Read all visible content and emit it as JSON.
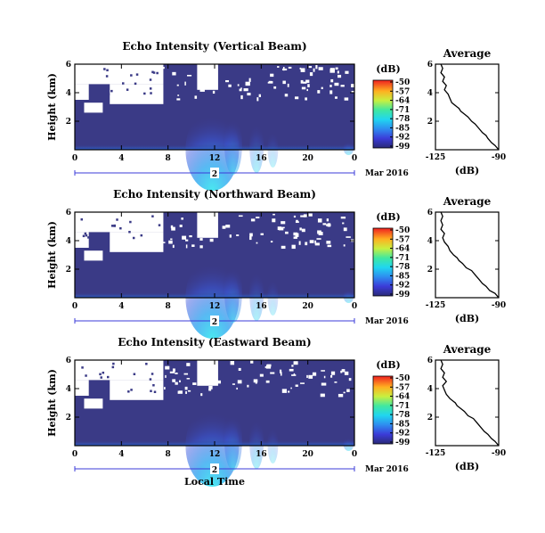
{
  "chart_data": [
    {
      "type": "heatmap",
      "title": "Echo Intensity (Vertical Beam)",
      "ylabel": "Height (km)",
      "ylim": [
        0,
        6
      ],
      "yticks": [
        "6",
        "4",
        "2"
      ],
      "xlim": [
        0,
        24
      ],
      "xticks": [
        "0",
        "4",
        "8",
        "12",
        "16",
        "20",
        "0"
      ],
      "date_day": "2",
      "date_label": "Mar 2016",
      "colorbar": {
        "unit": "(dB)",
        "ticks": [
          "-50",
          "-57",
          "-64",
          "-71",
          "-78",
          "-85",
          "-92",
          "-99"
        ]
      },
      "average": {
        "title": "Average",
        "xlabel": "(dB)",
        "xlim": [
          -125,
          -90
        ],
        "xticks": [
          "-125",
          "-90"
        ],
        "yticks": [
          "6",
          "4",
          "2"
        ],
        "profile": [
          [
            -90,
            0.0
          ],
          [
            -92,
            0.3
          ],
          [
            -94,
            0.5
          ],
          [
            -96,
            0.8
          ],
          [
            -97,
            1.0
          ],
          [
            -99,
            1.2
          ],
          [
            -101,
            1.5
          ],
          [
            -103,
            1.8
          ],
          [
            -105,
            2.0
          ],
          [
            -107,
            2.3
          ],
          [
            -109,
            2.5
          ],
          [
            -111,
            2.7
          ],
          [
            -112,
            2.9
          ],
          [
            -113,
            3.0
          ],
          [
            -116,
            3.3
          ],
          [
            -117,
            3.6
          ],
          [
            -118,
            3.9
          ],
          [
            -120,
            4.2
          ],
          [
            -119,
            4.5
          ],
          [
            -121,
            4.8
          ],
          [
            -120,
            5.1
          ],
          [
            -122,
            5.4
          ],
          [
            -121,
            5.7
          ],
          [
            -122,
            6.0
          ]
        ]
      }
    },
    {
      "type": "heatmap",
      "title": "Echo Intensity (Northward Beam)",
      "ylabel": "Height (km)",
      "ylim": [
        0,
        6
      ],
      "yticks": [
        "6",
        "4",
        "2"
      ],
      "xlim": [
        0,
        24
      ],
      "xticks": [
        "0",
        "4",
        "8",
        "12",
        "16",
        "20",
        "0"
      ],
      "date_day": "2",
      "date_label": "Mar 2016",
      "colorbar": {
        "unit": "(dB)",
        "ticks": [
          "-50",
          "-57",
          "-64",
          "-71",
          "-78",
          "-85",
          "-92",
          "-99"
        ]
      },
      "average": {
        "title": "Average",
        "xlabel": "(dB)",
        "xlim": [
          -125,
          -90
        ],
        "xticks": [
          "-125",
          "-90"
        ],
        "yticks": [
          "6",
          "4",
          "2"
        ],
        "profile": [
          [
            -90,
            0.0
          ],
          [
            -92,
            0.3
          ],
          [
            -95,
            0.5
          ],
          [
            -97,
            0.8
          ],
          [
            -99,
            1.0
          ],
          [
            -101,
            1.3
          ],
          [
            -103,
            1.6
          ],
          [
            -105,
            1.9
          ],
          [
            -108,
            2.1
          ],
          [
            -110,
            2.4
          ],
          [
            -112,
            2.6
          ],
          [
            -113,
            2.8
          ],
          [
            -115,
            3.0
          ],
          [
            -117,
            3.3
          ],
          [
            -118,
            3.6
          ],
          [
            -120,
            3.9
          ],
          [
            -121,
            4.2
          ],
          [
            -120,
            4.5
          ],
          [
            -122,
            4.8
          ],
          [
            -121,
            5.1
          ],
          [
            -122,
            5.4
          ],
          [
            -121,
            5.7
          ],
          [
            -122,
            6.0
          ]
        ]
      }
    },
    {
      "type": "heatmap",
      "title": "Echo Intensity (Eastward Beam)",
      "ylabel": "Height (km)",
      "ylim": [
        0,
        6
      ],
      "yticks": [
        "6",
        "4",
        "2"
      ],
      "xlim": [
        0,
        24
      ],
      "xticks": [
        "0",
        "4",
        "8",
        "12",
        "16",
        "20",
        "0"
      ],
      "date_day": "2",
      "date_label": "Mar 2016",
      "xlabel": "Local Time",
      "colorbar": {
        "unit": "(dB)",
        "ticks": [
          "-50",
          "-57",
          "-64",
          "-71",
          "-78",
          "-85",
          "-92",
          "-99"
        ]
      },
      "average": {
        "title": "Average",
        "xlabel": "(dB)",
        "xlim": [
          -125,
          -90
        ],
        "xticks": [
          "-125",
          "-90"
        ],
        "yticks": [
          "6",
          "4",
          "2"
        ],
        "profile": [
          [
            -90,
            0.0
          ],
          [
            -92,
            0.3
          ],
          [
            -94,
            0.5
          ],
          [
            -96,
            0.8
          ],
          [
            -98,
            1.0
          ],
          [
            -100,
            1.3
          ],
          [
            -102,
            1.6
          ],
          [
            -104,
            1.9
          ],
          [
            -107,
            2.1
          ],
          [
            -109,
            2.4
          ],
          [
            -111,
            2.6
          ],
          [
            -113,
            2.8
          ],
          [
            -114,
            3.0
          ],
          [
            -117,
            3.3
          ],
          [
            -119,
            3.6
          ],
          [
            -120,
            3.9
          ],
          [
            -121,
            4.2
          ],
          [
            -119,
            4.5
          ],
          [
            -121,
            4.8
          ],
          [
            -120,
            5.1
          ],
          [
            -122,
            5.4
          ],
          [
            -121,
            5.7
          ],
          [
            -122,
            6.0
          ]
        ]
      }
    }
  ]
}
